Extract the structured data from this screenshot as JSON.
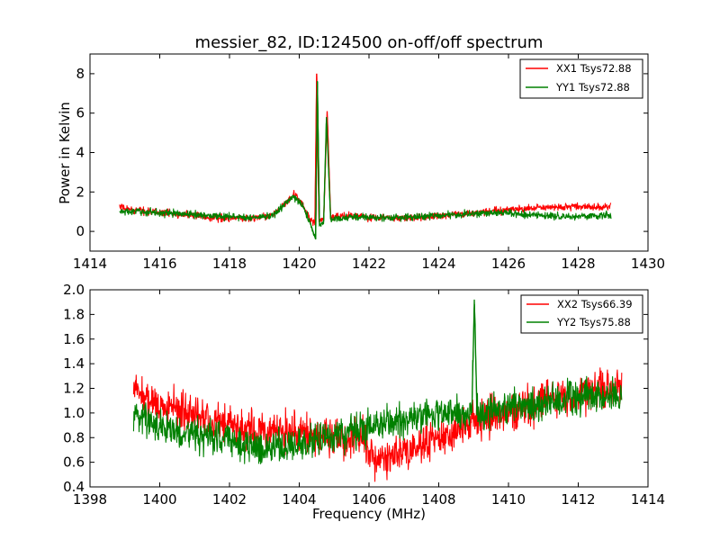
{
  "figure_title": "messier_82, ID:124500 on-off/off spectrum",
  "chart_data": [
    {
      "type": "line",
      "title": "messier_82, ID:124500 on-off/off spectrum",
      "xlabel": "",
      "ylabel": "Power in Kelvin",
      "xlim": [
        1414,
        1430
      ],
      "ylim": [
        -1,
        9
      ],
      "xticks": [
        1414,
        1416,
        1418,
        1420,
        1422,
        1424,
        1426,
        1428,
        1430
      ],
      "xtick_labels": [
        "1414",
        "1416",
        "1418",
        "1420",
        "1422",
        "1424",
        "1426",
        "1428",
        "1430"
      ],
      "yticks": [
        0,
        2,
        4,
        6,
        8
      ],
      "ytick_labels": [
        "0",
        "2",
        "4",
        "6",
        "8"
      ],
      "grid": false,
      "legend_position": "top-right",
      "series": [
        {
          "name": "XX1 Tsys72.88",
          "color": "#ff0000",
          "noise": 0.13,
          "points": [
            [
              1414.85,
              1.2
            ],
            [
              1415.5,
              1.05
            ],
            [
              1416.5,
              0.9
            ],
            [
              1417.5,
              0.7
            ],
            [
              1418.5,
              0.65
            ],
            [
              1419.2,
              0.8
            ],
            [
              1419.6,
              1.4
            ],
            [
              1419.85,
              1.85
            ],
            [
              1420.1,
              1.4
            ],
            [
              1420.3,
              0.6
            ],
            [
              1420.45,
              0.4
            ],
            [
              1420.5,
              8.0
            ],
            [
              1420.57,
              0.5
            ],
            [
              1420.7,
              0.6
            ],
            [
              1420.8,
              6.1
            ],
            [
              1420.9,
              0.7
            ],
            [
              1421.5,
              0.8
            ],
            [
              1422.0,
              0.7
            ],
            [
              1423.0,
              0.65
            ],
            [
              1424.0,
              0.8
            ],
            [
              1425.0,
              0.95
            ],
            [
              1426.0,
              1.1
            ],
            [
              1427.0,
              1.2
            ],
            [
              1428.0,
              1.25
            ],
            [
              1428.95,
              1.25
            ]
          ]
        },
        {
          "name": "YY1 Tsys72.88",
          "color": "#008000",
          "noise": 0.13,
          "points": [
            [
              1414.85,
              1.0
            ],
            [
              1415.5,
              1.0
            ],
            [
              1416.5,
              0.9
            ],
            [
              1417.5,
              0.8
            ],
            [
              1418.5,
              0.7
            ],
            [
              1419.2,
              0.75
            ],
            [
              1419.6,
              1.4
            ],
            [
              1419.85,
              1.75
            ],
            [
              1420.1,
              1.3
            ],
            [
              1420.3,
              0.5
            ],
            [
              1420.47,
              -0.4
            ],
            [
              1420.52,
              7.6
            ],
            [
              1420.58,
              0.3
            ],
            [
              1420.7,
              0.5
            ],
            [
              1420.78,
              5.8
            ],
            [
              1420.9,
              0.6
            ],
            [
              1421.5,
              0.75
            ],
            [
              1422.0,
              0.7
            ],
            [
              1423.0,
              0.7
            ],
            [
              1424.0,
              0.8
            ],
            [
              1425.0,
              0.9
            ],
            [
              1425.8,
              0.95
            ],
            [
              1426.5,
              0.85
            ],
            [
              1427.5,
              0.75
            ],
            [
              1428.95,
              0.8
            ]
          ]
        }
      ]
    },
    {
      "type": "line",
      "title": "",
      "xlabel": "Frequency (MHz)",
      "ylabel": "",
      "xlim": [
        1398,
        1414
      ],
      "ylim": [
        0.4,
        2.0
      ],
      "xticks": [
        1398,
        1400,
        1402,
        1404,
        1406,
        1408,
        1410,
        1412,
        1414
      ],
      "xtick_labels": [
        "1398",
        "1400",
        "1402",
        "1404",
        "1406",
        "1408",
        "1410",
        "1412",
        "1414"
      ],
      "yticks": [
        0.4,
        0.6,
        0.8,
        1.0,
        1.2,
        1.4,
        1.6,
        1.8,
        2.0
      ],
      "ytick_labels": [
        "0.4",
        "0.6",
        "0.8",
        "1.0",
        "1.2",
        "1.4",
        "1.6",
        "1.8",
        "2.0"
      ],
      "grid": false,
      "legend_position": "top-right",
      "series": [
        {
          "name": "XX2 Tsys66.39",
          "color": "#ff0000",
          "noise": 0.11,
          "points": [
            [
              1399.25,
              1.2
            ],
            [
              1400.0,
              1.05
            ],
            [
              1401.0,
              1.0
            ],
            [
              1402.0,
              0.9
            ],
            [
              1403.0,
              0.85
            ],
            [
              1404.0,
              0.85
            ],
            [
              1405.0,
              0.8
            ],
            [
              1405.8,
              0.8
            ],
            [
              1406.2,
              0.65
            ],
            [
              1407.0,
              0.68
            ],
            [
              1407.8,
              0.78
            ],
            [
              1408.5,
              0.85
            ],
            [
              1409.0,
              0.95
            ],
            [
              1410.0,
              1.0
            ],
            [
              1411.0,
              1.08
            ],
            [
              1412.0,
              1.15
            ],
            [
              1413.25,
              1.2
            ]
          ]
        },
        {
          "name": "YY2 Tsys75.88",
          "color": "#008000",
          "noise": 0.1,
          "points": [
            [
              1399.25,
              1.0
            ],
            [
              1400.0,
              0.9
            ],
            [
              1401.0,
              0.82
            ],
            [
              1402.0,
              0.78
            ],
            [
              1403.0,
              0.72
            ],
            [
              1404.0,
              0.75
            ],
            [
              1405.0,
              0.8
            ],
            [
              1406.0,
              0.9
            ],
            [
              1407.0,
              0.95
            ],
            [
              1408.0,
              1.0
            ],
            [
              1408.95,
              1.0
            ],
            [
              1409.02,
              1.92
            ],
            [
              1409.1,
              1.0
            ],
            [
              1410.0,
              1.05
            ],
            [
              1411.0,
              1.08
            ],
            [
              1412.0,
              1.15
            ],
            [
              1413.25,
              1.15
            ]
          ]
        }
      ]
    }
  ]
}
